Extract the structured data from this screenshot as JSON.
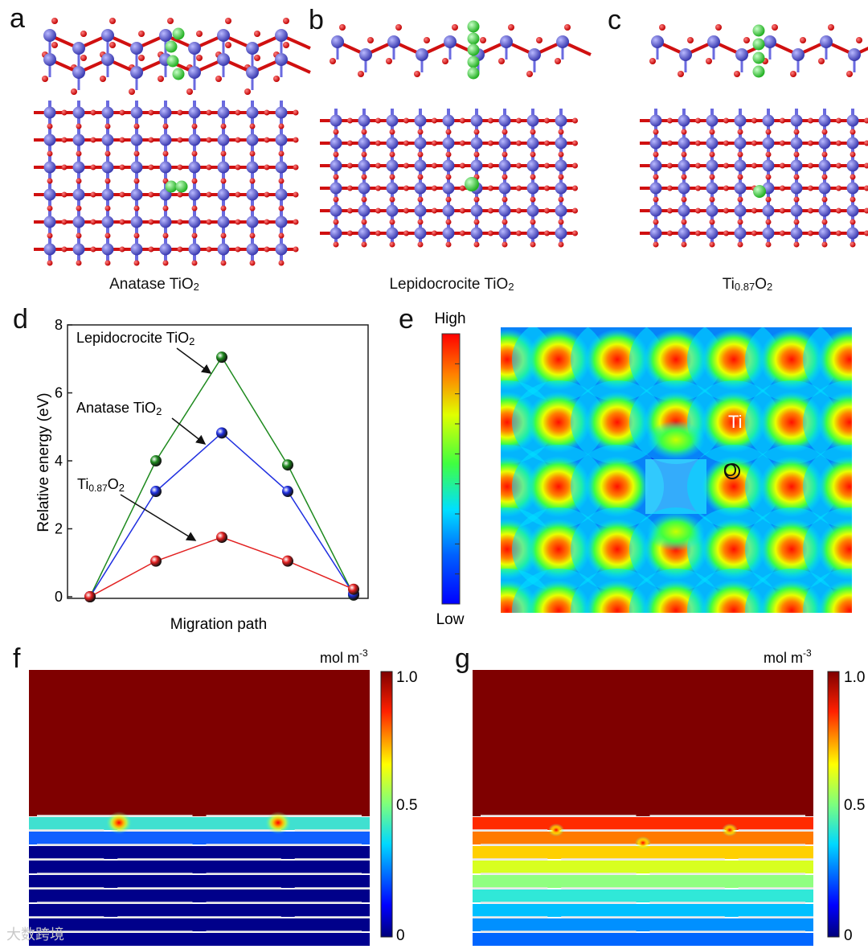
{
  "panels": {
    "a": "a",
    "b": "b",
    "c": "c",
    "d": "d",
    "e": "e",
    "f": "f",
    "g": "g"
  },
  "captions": {
    "a": {
      "main": "Anatase TiO",
      "sub": "2"
    },
    "b": {
      "main": "Lepidocrocite TiO",
      "sub": "2"
    },
    "c": {
      "pre": "Ti",
      "sub1": "0.87",
      "mid": "O",
      "sub2": "2"
    }
  },
  "chart_data": {
    "type": "line",
    "title": "",
    "xlabel": "Migration path",
    "ylabel": "Relative energy (eV)",
    "ylim": [
      0,
      8
    ],
    "yticks": [
      "0",
      "2",
      "4",
      "6",
      "8"
    ],
    "x": [
      0,
      1,
      2,
      3,
      4
    ],
    "series": [
      {
        "name": "Lepidocrocite TiO2",
        "label_main": "Lepidocrocite TiO",
        "label_sub": "2",
        "color": "#1e8a1e",
        "values": [
          0,
          4.0,
          7.05,
          3.88,
          0.05
        ]
      },
      {
        "name": "Anatase TiO2",
        "label_main": "Anatase TiO",
        "label_sub": "2",
        "color": "#1f2fe0",
        "values": [
          0,
          3.1,
          4.82,
          3.1,
          0.08
        ]
      },
      {
        "name": "Ti0.87O2",
        "label_pre": "Ti",
        "label_sub1": "0.87",
        "label_mid": "O",
        "label_sub2": "2",
        "color": "#e22020",
        "values": [
          0,
          1.05,
          1.75,
          1.05,
          0.22
        ]
      }
    ]
  },
  "panel_e": {
    "high": "High",
    "low": "Low",
    "ti_label": "Ti",
    "o_label": "O"
  },
  "panel_f": {
    "unit_main": "mol m",
    "unit_sup": "-3",
    "tick_top": "1.0",
    "tick_mid": "0.5",
    "tick_bottom": "0"
  },
  "panel_g": {
    "unit_main": "mol m",
    "unit_sup": "-3",
    "tick_top": "1.0",
    "tick_mid": "0.5",
    "tick_bottom": "0"
  },
  "watermark": "大数跨境",
  "colors": {
    "ti": "#5a5ad6",
    "o": "#e01010",
    "li": "#33cc33",
    "dark_red": "#7f0000",
    "navy": "#00007a"
  }
}
